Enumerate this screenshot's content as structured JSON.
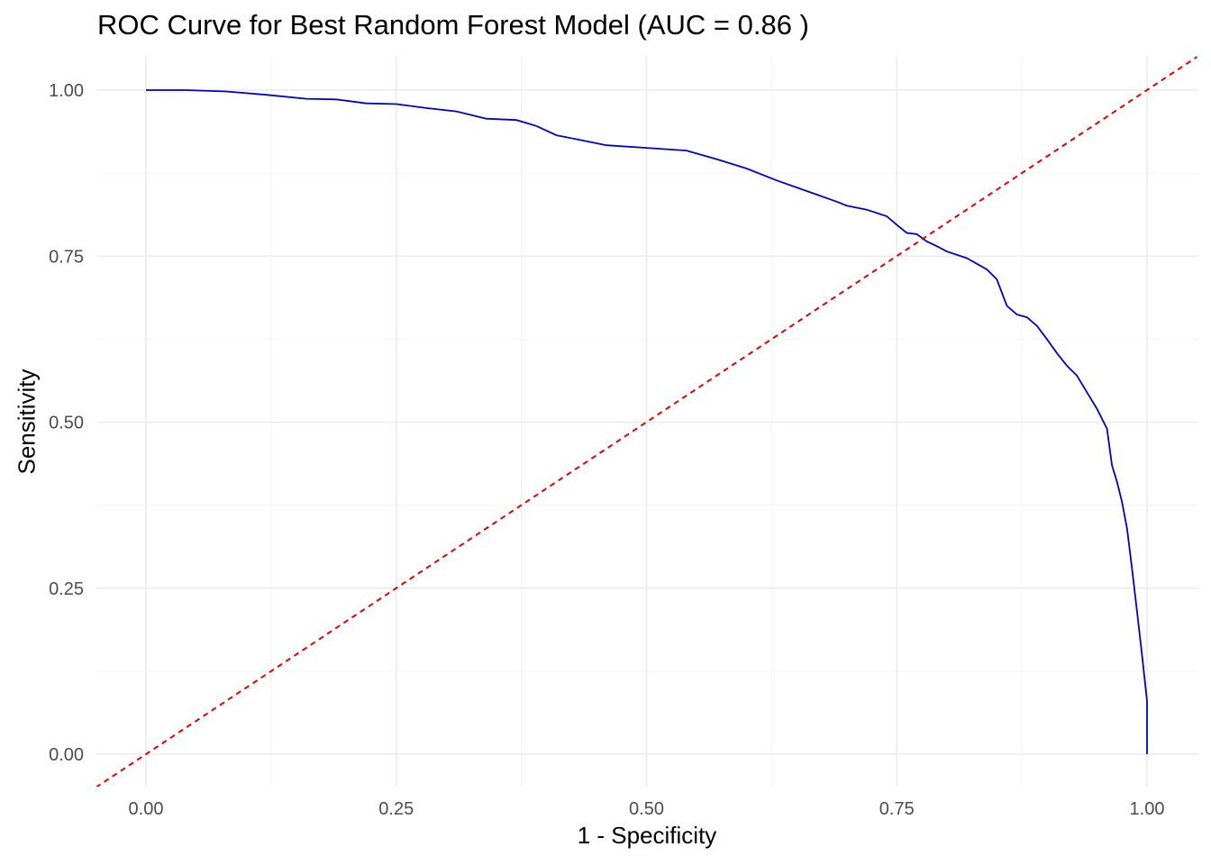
{
  "chart_data": {
    "type": "line",
    "title": "ROC Curve for Best Random Forest Model (AUC = 0.86 )",
    "xlabel": "1 - Specificity",
    "ylabel": "Sensitivity",
    "xlim": [
      0,
      1
    ],
    "ylim": [
      0,
      1
    ],
    "x_ticks": [
      "0.00",
      "0.25",
      "0.50",
      "0.75",
      "1.00"
    ],
    "y_ticks": [
      "0.00",
      "0.25",
      "0.50",
      "0.75",
      "1.00"
    ],
    "grid": true,
    "legend": "none",
    "series": [
      {
        "color": "#0000cc",
        "style": "solid",
        "x": [
          0.0,
          0.04,
          0.08,
          0.12,
          0.16,
          0.19,
          0.22,
          0.25,
          0.28,
          0.31,
          0.34,
          0.37,
          0.39,
          0.41,
          0.43,
          0.46,
          0.5,
          0.54,
          0.57,
          0.6,
          0.63,
          0.66,
          0.69,
          0.7,
          0.72,
          0.74,
          0.75,
          0.76,
          0.77,
          0.78,
          0.79,
          0.8,
          0.82,
          0.84,
          0.85,
          0.86,
          0.87,
          0.88,
          0.89,
          0.9,
          0.91,
          0.92,
          0.93,
          0.94,
          0.95,
          0.96,
          0.965,
          0.97,
          0.975,
          0.98,
          0.985,
          0.99,
          0.995,
          1.0,
          1.0
        ],
        "y": [
          1.0,
          1.0,
          0.998,
          0.993,
          0.987,
          0.986,
          0.98,
          0.979,
          0.973,
          0.968,
          0.957,
          0.955,
          0.946,
          0.932,
          0.926,
          0.917,
          0.913,
          0.909,
          0.896,
          0.882,
          0.864,
          0.848,
          0.832,
          0.826,
          0.82,
          0.81,
          0.797,
          0.785,
          0.783,
          0.772,
          0.765,
          0.757,
          0.747,
          0.73,
          0.715,
          0.675,
          0.662,
          0.658,
          0.645,
          0.625,
          0.604,
          0.585,
          0.57,
          0.545,
          0.52,
          0.49,
          0.435,
          0.41,
          0.38,
          0.34,
          0.28,
          0.215,
          0.15,
          0.08,
          0.0
        ]
      },
      {
        "color": "#e60000",
        "style": "dashed",
        "x": [
          -0.05,
          1.05
        ],
        "y": [
          -0.05,
          1.05
        ]
      }
    ]
  }
}
